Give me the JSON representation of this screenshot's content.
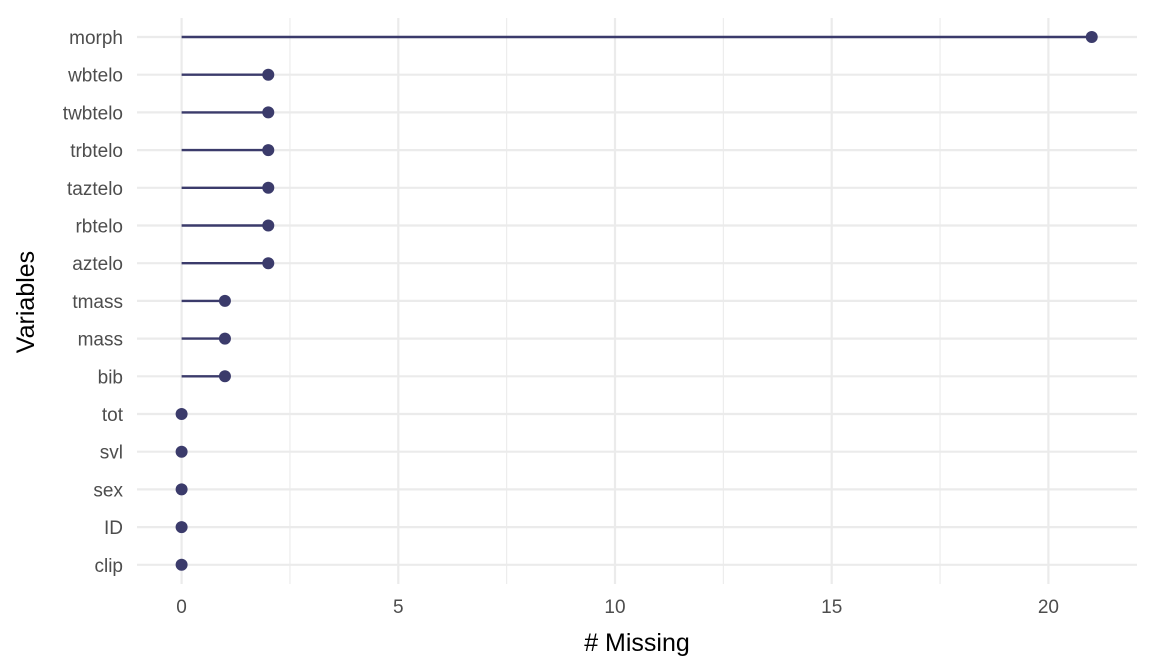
{
  "chart_data": {
    "type": "lollipop",
    "title": "",
    "xlabel": "# Missing",
    "ylabel": "Variables",
    "xlim": [
      -1.0,
      22.0
    ],
    "x_ticks": [
      0,
      5,
      10,
      15,
      20
    ],
    "x_tick_labels": [
      "0",
      "5",
      "10",
      "15",
      "20"
    ],
    "grid": true,
    "legend": "none",
    "colors": {
      "mark": "#3b3b6b",
      "grid": "#ebebeb",
      "background": "#ffffff"
    },
    "categories": [
      "morph",
      "wbtelo",
      "twbtelo",
      "trbtelo",
      "taztelo",
      "rbtelo",
      "aztelo",
      "tmass",
      "mass",
      "bib",
      "tot",
      "svl",
      "sex",
      "ID",
      "clip"
    ],
    "values": [
      21,
      2,
      2,
      2,
      2,
      2,
      2,
      1,
      1,
      1,
      0,
      0,
      0,
      0,
      0
    ]
  }
}
